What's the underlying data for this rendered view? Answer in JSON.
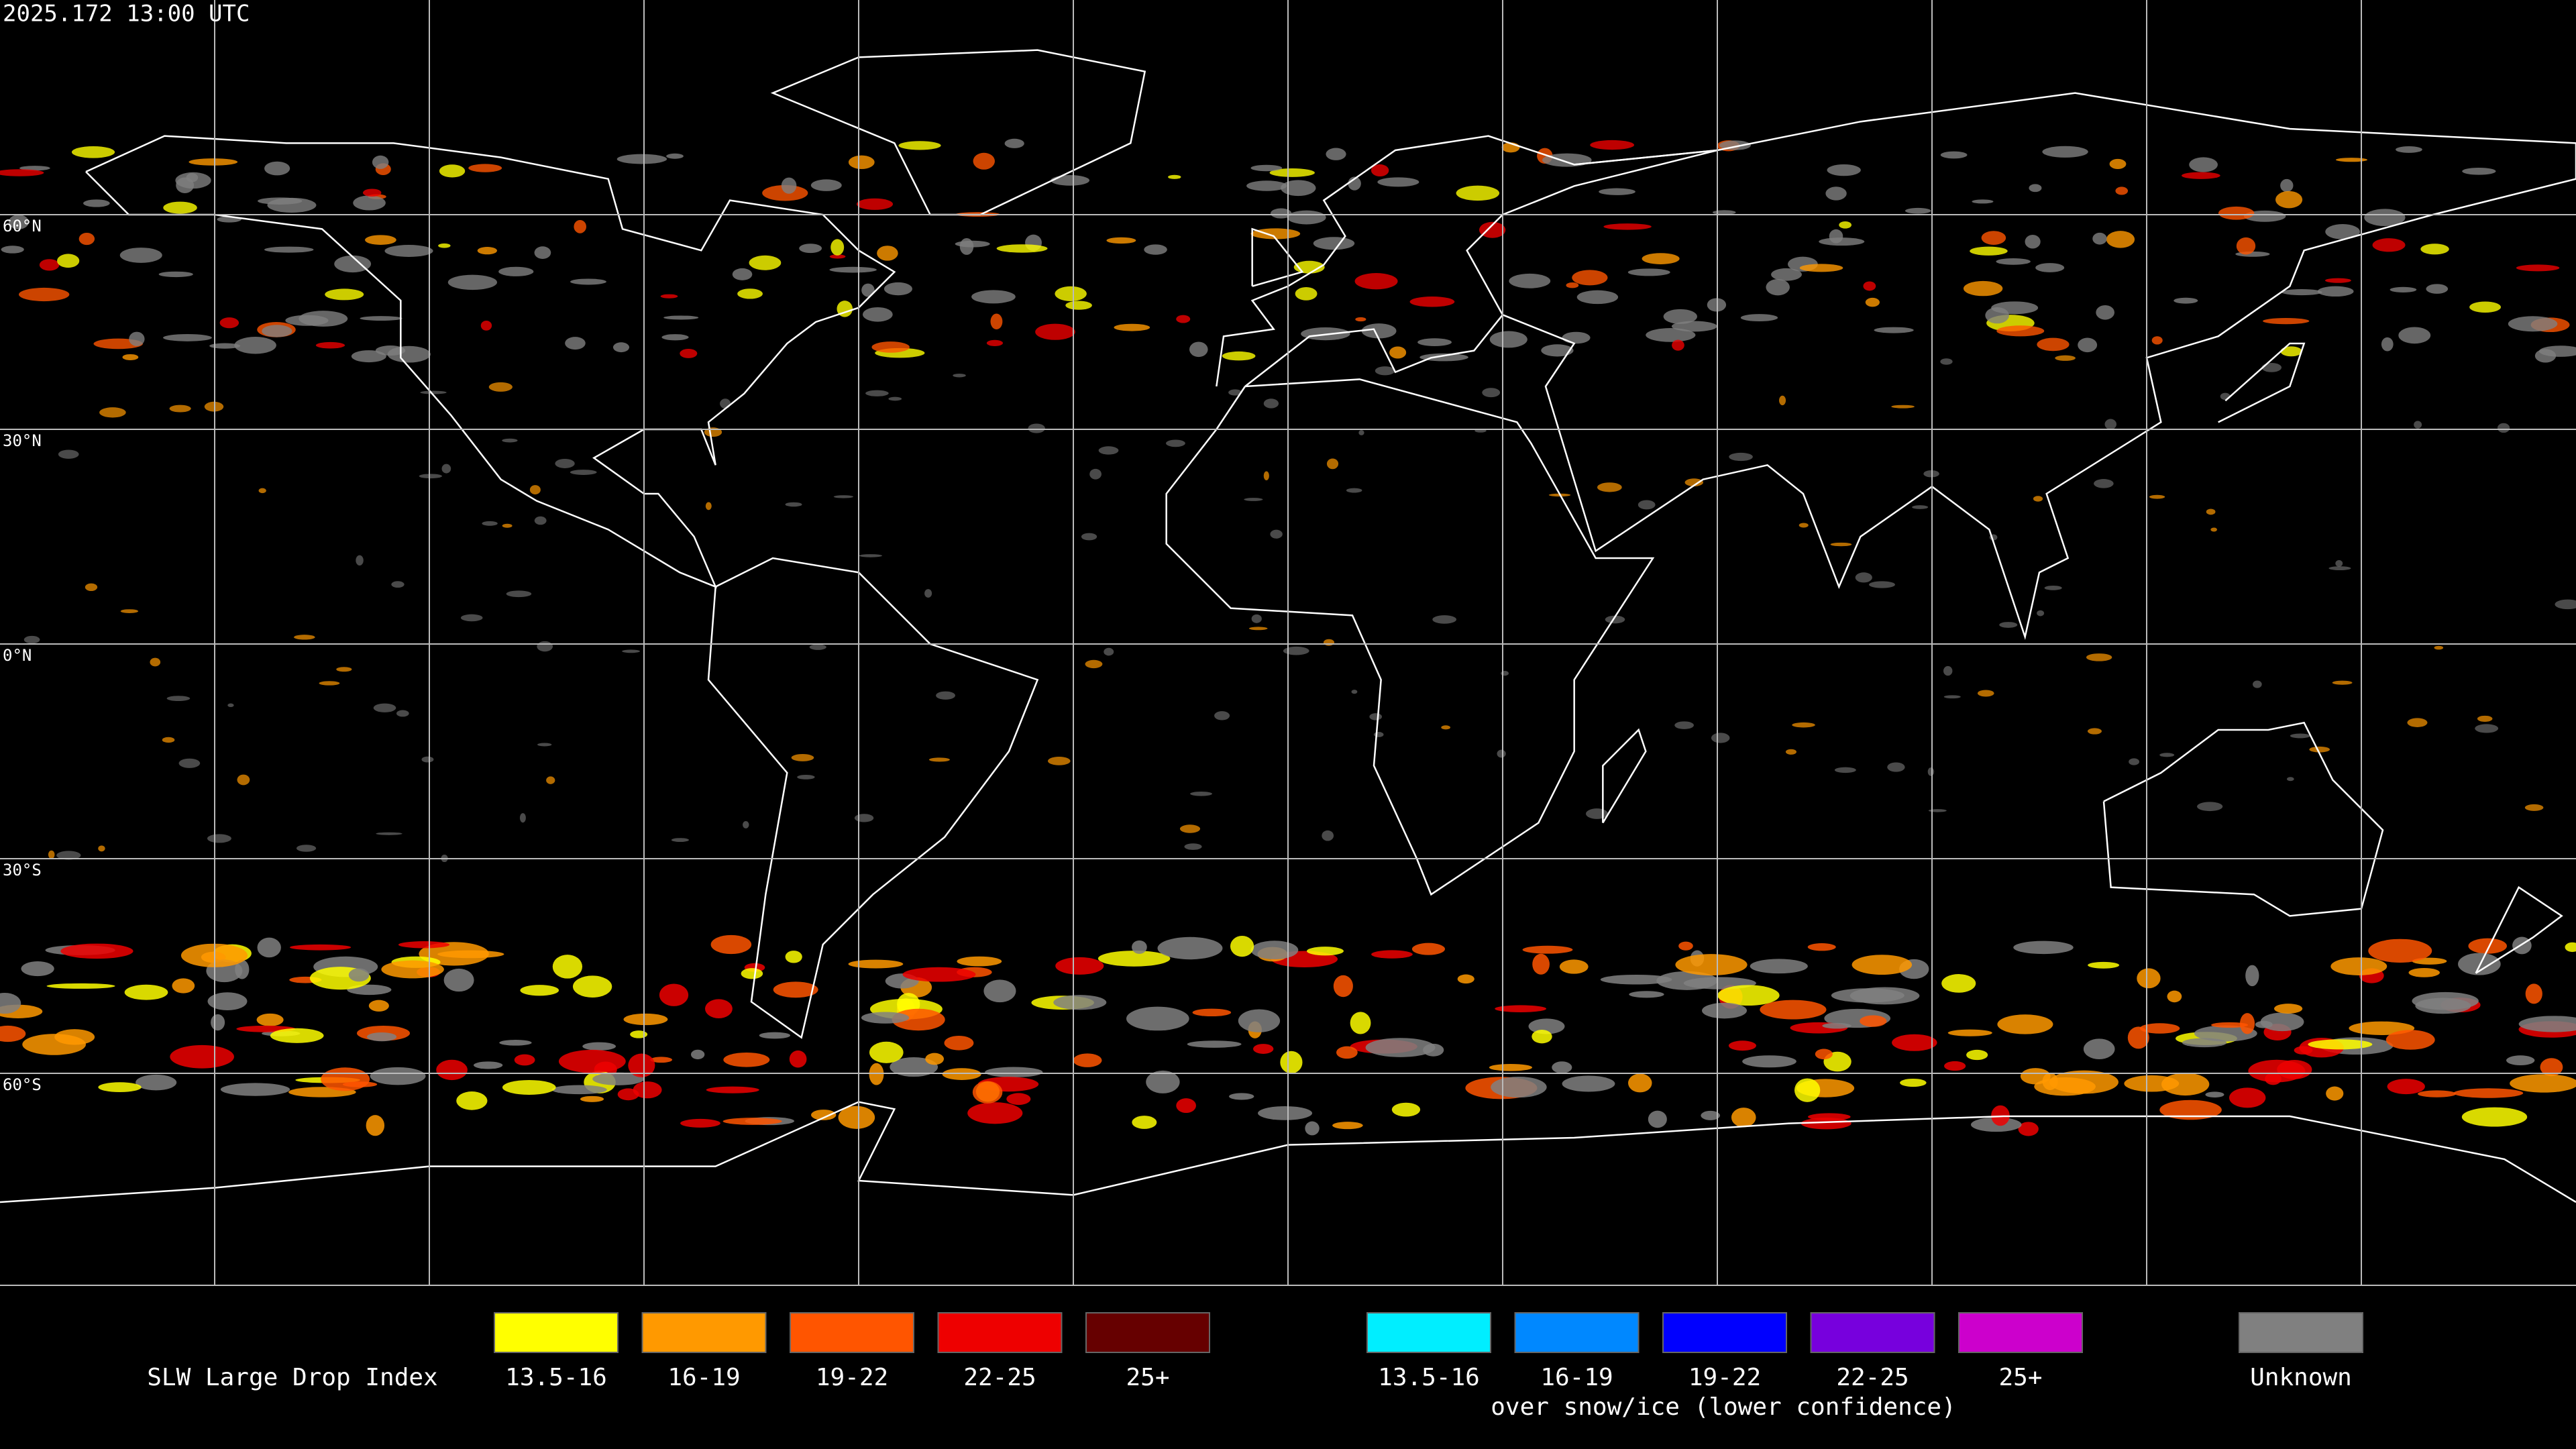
{
  "timestamp": "2025.172 13:00 UTC",
  "map": {
    "latitude_labels": [
      "60°N",
      "30°N",
      "0°N",
      "30°S",
      "60°S"
    ]
  },
  "legend": {
    "title": "SLW Large Drop Index",
    "items": [
      {
        "label": "13.5-16",
        "color": "#ffff00"
      },
      {
        "label": "16-19",
        "color": "#ff9900"
      },
      {
        "label": "19-22",
        "color": "#ff5500"
      },
      {
        "label": "22-25",
        "color": "#ee0000"
      },
      {
        "label": "25+",
        "color": "#660000"
      }
    ],
    "snow_ice_items": [
      {
        "label": "13.5-16",
        "color": "#00eeff"
      },
      {
        "label": "16-19",
        "color": "#0088ff"
      },
      {
        "label": "19-22",
        "color": "#0000ff"
      },
      {
        "label": "22-25",
        "color": "#7700dd"
      },
      {
        "label": "25+",
        "color": "#cc00cc"
      }
    ],
    "snow_ice_note": "over snow/ice (lower confidence)",
    "unknown": {
      "label": "Unknown",
      "color": "#808080"
    }
  }
}
